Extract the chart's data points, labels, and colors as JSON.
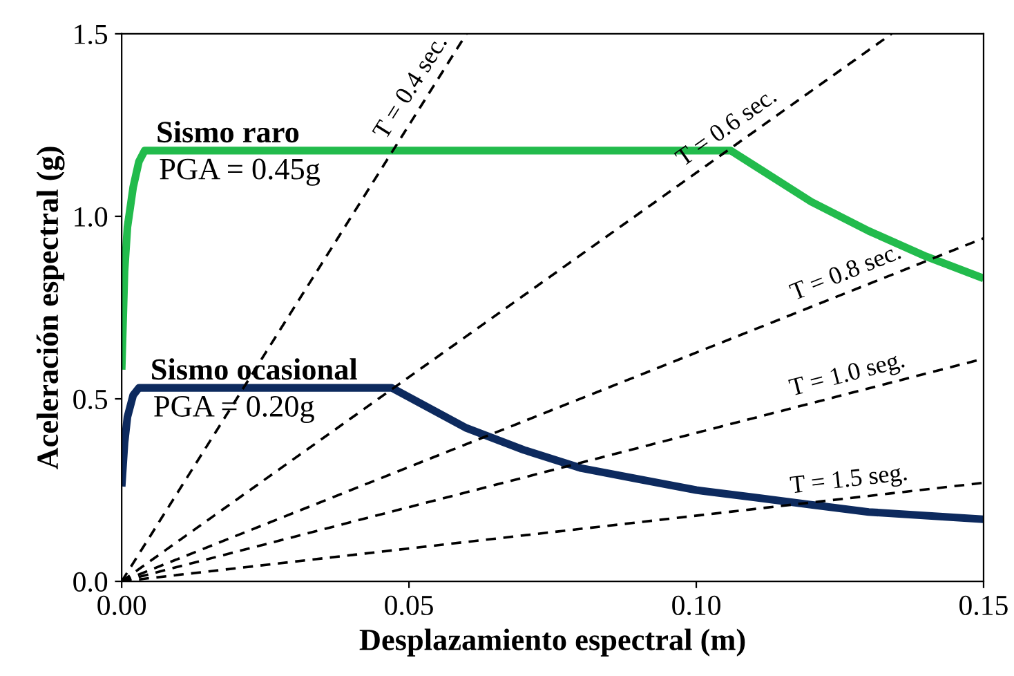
{
  "chart_data": {
    "type": "line",
    "xlabel": "Desplazamiento espectral (m)",
    "ylabel": "Aceleración espectral (g)",
    "xlim": [
      0,
      0.15
    ],
    "ylim": [
      0,
      1.5
    ],
    "xticks": [
      {
        "value": 0,
        "label": "0.00"
      },
      {
        "value": 0.05,
        "label": "0.05"
      },
      {
        "value": 0.1,
        "label": "0.10"
      },
      {
        "value": 0.15,
        "label": "0.15"
      }
    ],
    "yticks": [
      {
        "value": 0,
        "label": "0.0"
      },
      {
        "value": 0.5,
        "label": "0.5"
      },
      {
        "value": 1,
        "label": "1.0"
      },
      {
        "value": 1.5,
        "label": "1.5"
      }
    ],
    "grid": false,
    "legend": false,
    "marker": "none",
    "series": [
      {
        "name": "Sismo raro",
        "color": "#22bb4c",
        "line_style": "solid",
        "x": [
          0,
          0.0005,
          0.001,
          0.002,
          0.003,
          0.004,
          0.106,
          0.11,
          0.12,
          0.13,
          0.14,
          0.15
        ],
        "values": [
          0.58,
          0.85,
          0.97,
          1.08,
          1.15,
          1.18,
          1.18,
          1.14,
          1.04,
          0.96,
          0.89,
          0.83
        ]
      },
      {
        "name": "Sismo ocasional",
        "color": "#0d2a5e",
        "line_style": "solid",
        "x": [
          0,
          0.0005,
          0.001,
          0.002,
          0.003,
          0.047,
          0.06,
          0.07,
          0.08,
          0.09,
          0.1,
          0.11,
          0.12,
          0.13,
          0.14,
          0.15
        ],
        "values": [
          0.26,
          0.38,
          0.45,
          0.51,
          0.53,
          0.53,
          0.42,
          0.36,
          0.31,
          0.28,
          0.25,
          0.23,
          0.21,
          0.19,
          0.18,
          0.17
        ]
      },
      {
        "name": "T = 0.4 sec.",
        "color": "#000000",
        "line_style": "dashed",
        "x": [
          0,
          0.06
        ],
        "values": [
          0,
          1.5
        ]
      },
      {
        "name": "T = 0.6 sec.",
        "color": "#000000",
        "line_style": "dashed",
        "x": [
          0,
          0.134
        ],
        "values": [
          0,
          1.5
        ]
      },
      {
        "name": "T = 0.8 sec.",
        "color": "#000000",
        "line_style": "dashed",
        "x": [
          0,
          0.15
        ],
        "values": [
          0,
          0.94
        ]
      },
      {
        "name": "T = 1.0 seg.",
        "color": "#000000",
        "line_style": "dashed",
        "x": [
          0,
          0.15
        ],
        "values": [
          0,
          0.61
        ]
      },
      {
        "name": "T = 1.5 seg.",
        "color": "#000000",
        "line_style": "dashed",
        "x": [
          0,
          0.15
        ],
        "values": [
          0,
          0.27
        ]
      }
    ],
    "annotations": [
      "PGA = 0.45g",
      "PGA = 0.20g"
    ]
  }
}
